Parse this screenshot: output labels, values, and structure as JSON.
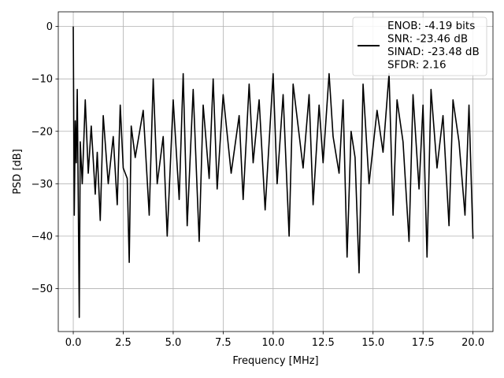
{
  "chart_data": {
    "type": "line",
    "title": "",
    "xlabel": "Frequency [MHz]",
    "ylabel": "PSD [dB]",
    "xlim": [
      -0.75,
      21.0
    ],
    "ylim": [
      -58.2,
      2.8
    ],
    "xticks": [
      0.0,
      2.5,
      5.0,
      7.5,
      10.0,
      12.5,
      15.0,
      17.5,
      20.0
    ],
    "xtick_labels": [
      "0.0",
      "2.5",
      "5.0",
      "7.5",
      "10.0",
      "12.5",
      "15.0",
      "17.5",
      "20.0"
    ],
    "yticks": [
      0,
      -10,
      -20,
      -30,
      -40,
      -50
    ],
    "ytick_labels": [
      "0",
      "−10",
      "−20",
      "−30",
      "−40",
      "−50"
    ],
    "grid": true,
    "legend_position": "top-right",
    "legend_line_color": "#000000",
    "legend_lines": [
      "ENOB: -4.19 bits",
      "SNR: -23.46 dB",
      "SINAD: -23.48 dB",
      "SFDR: 2.16"
    ],
    "series": [
      {
        "color": "#000000",
        "x": [
          0.0,
          0.05,
          0.1,
          0.15,
          0.2,
          0.25,
          0.3,
          0.35,
          0.45,
          0.6,
          0.75,
          0.9,
          1.1,
          1.2,
          1.35,
          1.5,
          1.75,
          2.0,
          2.2,
          2.35,
          2.5,
          2.7,
          2.8,
          2.9,
          3.1,
          3.5,
          3.8,
          4.0,
          4.2,
          4.5,
          4.7,
          5.0,
          5.3,
          5.5,
          5.7,
          6.0,
          6.3,
          6.5,
          6.8,
          7.0,
          7.2,
          7.5,
          7.9,
          8.3,
          8.5,
          8.8,
          9.0,
          9.3,
          9.6,
          10.0,
          10.2,
          10.5,
          10.8,
          11.0,
          11.5,
          11.8,
          12.0,
          12.3,
          12.5,
          12.8,
          13.0,
          13.3,
          13.5,
          13.7,
          13.9,
          14.1,
          14.3,
          14.5,
          14.8,
          15.2,
          15.5,
          15.8,
          16.0,
          16.2,
          16.5,
          16.8,
          17.0,
          17.3,
          17.5,
          17.7,
          17.9,
          18.2,
          18.5,
          18.8,
          19.0,
          19.3,
          19.6,
          19.8,
          20.0
        ],
        "y": [
          0,
          -36,
          -18,
          -26,
          -12,
          -33,
          -55.5,
          -22,
          -30,
          -14,
          -28,
          -19,
          -32,
          -24,
          -37,
          -17,
          -30,
          -21,
          -34,
          -15,
          -27,
          -29,
          -45,
          -19,
          -25,
          -16,
          -36,
          -10,
          -30,
          -21,
          -40,
          -14,
          -33,
          -9,
          -38,
          -12,
          -41,
          -15,
          -29,
          -10,
          -31,
          -13,
          -28,
          -17,
          -33,
          -11,
          -26,
          -14,
          -35,
          -9,
          -30,
          -13,
          -40,
          -11,
          -27,
          -13,
          -34,
          -15,
          -26,
          -9,
          -21,
          -28,
          -14,
          -44,
          -20,
          -25,
          -47,
          -11,
          -30,
          -16,
          -24,
          -9,
          -36,
          -14,
          -22,
          -41,
          -13,
          -31,
          -15,
          -44,
          -12,
          -27,
          -17,
          -38,
          -14,
          -22,
          -36,
          -15,
          -40.5
        ]
      }
    ]
  }
}
